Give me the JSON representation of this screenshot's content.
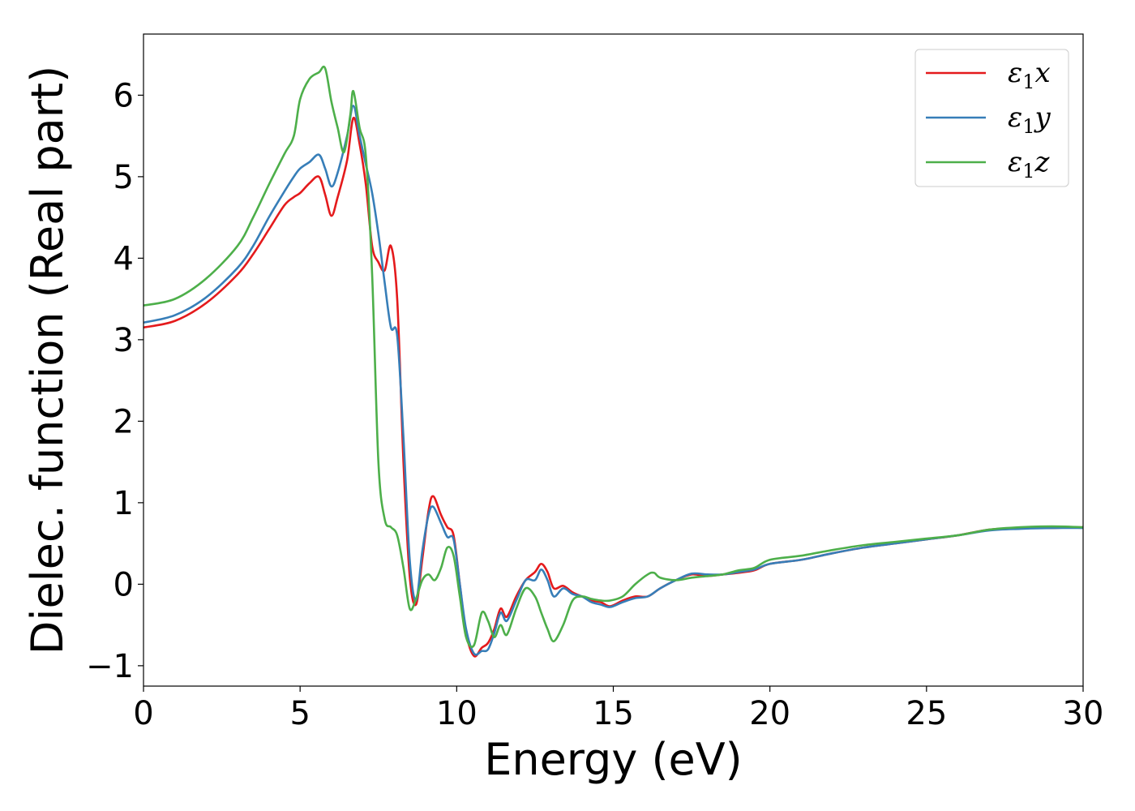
{
  "chart_data": {
    "type": "line",
    "xlabel": "Energy (eV)",
    "ylabel": "Dielec. function (Real part)",
    "xlim": [
      0,
      30
    ],
    "ylim": [
      -1.25,
      6.75
    ],
    "xticks": [
      0,
      5,
      10,
      15,
      20,
      25,
      30
    ],
    "yticks": [
      -1,
      0,
      1,
      2,
      3,
      4,
      5,
      6
    ],
    "xtick_labels": [
      "0",
      "5",
      "10",
      "15",
      "20",
      "25",
      "30"
    ],
    "ytick_labels": [
      "−1",
      "0",
      "1",
      "2",
      "3",
      "4",
      "5",
      "6"
    ],
    "grid": false,
    "legend_position": "top-right",
    "series": [
      {
        "name": "ε1x",
        "name_base": "ε",
        "name_sub": "1",
        "name_var": "x",
        "color": "#e41a1c",
        "x": [
          0,
          1,
          2,
          3,
          3.5,
          4,
          4.5,
          4.8,
          5.0,
          5.3,
          5.6,
          5.8,
          6.0,
          6.2,
          6.5,
          6.7,
          6.9,
          7.1,
          7.3,
          7.5,
          7.7,
          7.9,
          8.1,
          8.3,
          8.5,
          8.7,
          8.9,
          9.1,
          9.25,
          9.5,
          9.7,
          9.9,
          10.1,
          10.3,
          10.55,
          10.8,
          11.0,
          11.2,
          11.4,
          11.6,
          11.9,
          12.2,
          12.5,
          12.7,
          12.9,
          13.1,
          13.4,
          13.7,
          14.0,
          14.3,
          14.6,
          14.9,
          15.3,
          15.7,
          16.1,
          16.5,
          17.0,
          17.5,
          18.0,
          18.5,
          19.0,
          19.5,
          20.0,
          21.0,
          22.0,
          23.0,
          24.0,
          25.0,
          26.0,
          27.0,
          28.0,
          29.0,
          30.0
        ],
        "values": [
          3.15,
          3.23,
          3.45,
          3.8,
          4.05,
          4.35,
          4.65,
          4.75,
          4.8,
          4.92,
          5.0,
          4.78,
          4.52,
          4.75,
          5.2,
          5.72,
          5.4,
          4.9,
          4.15,
          3.95,
          3.85,
          4.15,
          3.5,
          1.5,
          0.1,
          -0.25,
          0.3,
          0.9,
          1.08,
          0.85,
          0.7,
          0.6,
          0.0,
          -0.6,
          -0.88,
          -0.78,
          -0.72,
          -0.55,
          -0.3,
          -0.4,
          -0.15,
          0.05,
          0.15,
          0.25,
          0.15,
          -0.05,
          -0.02,
          -0.1,
          -0.15,
          -0.2,
          -0.22,
          -0.27,
          -0.2,
          -0.15,
          -0.15,
          -0.05,
          0.05,
          0.12,
          0.1,
          0.12,
          0.14,
          0.17,
          0.25,
          0.3,
          0.38,
          0.45,
          0.5,
          0.55,
          0.6,
          0.67,
          0.69,
          0.69,
          0.7
        ]
      },
      {
        "name": "ε1y",
        "name_base": "ε",
        "name_sub": "1",
        "name_var": "y",
        "color": "#377eb8",
        "x": [
          0,
          1,
          2,
          3,
          3.5,
          4,
          4.5,
          4.8,
          5.0,
          5.3,
          5.6,
          5.8,
          6.0,
          6.2,
          6.5,
          6.7,
          6.9,
          7.1,
          7.3,
          7.5,
          7.7,
          7.9,
          8.1,
          8.3,
          8.5,
          8.7,
          8.9,
          9.1,
          9.25,
          9.5,
          9.7,
          9.9,
          10.1,
          10.3,
          10.55,
          10.8,
          11.0,
          11.2,
          11.4,
          11.6,
          11.9,
          12.2,
          12.5,
          12.7,
          12.9,
          13.1,
          13.4,
          13.7,
          14.0,
          14.3,
          14.6,
          14.9,
          15.3,
          15.7,
          16.1,
          16.5,
          17.0,
          17.5,
          18.0,
          18.5,
          19.0,
          19.5,
          20.0,
          21.0,
          22.0,
          23.0,
          24.0,
          25.0,
          26.0,
          27.0,
          28.0,
          29.0,
          30.0
        ],
        "values": [
          3.21,
          3.3,
          3.52,
          3.88,
          4.15,
          4.5,
          4.82,
          5.0,
          5.1,
          5.18,
          5.27,
          5.1,
          4.88,
          5.05,
          5.5,
          5.87,
          5.5,
          5.15,
          4.8,
          4.3,
          3.7,
          3.15,
          3.05,
          1.8,
          0.3,
          -0.2,
          0.4,
          0.85,
          0.95,
          0.75,
          0.58,
          0.55,
          0.0,
          -0.55,
          -0.85,
          -0.82,
          -0.8,
          -0.6,
          -0.35,
          -0.45,
          -0.2,
          0.05,
          0.05,
          0.18,
          0.05,
          -0.15,
          -0.05,
          -0.12,
          -0.15,
          -0.22,
          -0.25,
          -0.28,
          -0.22,
          -0.17,
          -0.15,
          -0.05,
          0.05,
          0.13,
          0.12,
          0.12,
          0.15,
          0.18,
          0.25,
          0.3,
          0.38,
          0.45,
          0.5,
          0.55,
          0.6,
          0.66,
          0.68,
          0.69,
          0.69
        ]
      },
      {
        "name": "ε1z",
        "name_base": "ε",
        "name_sub": "1",
        "name_var": "z",
        "color": "#4daf4a",
        "x": [
          0,
          1,
          2,
          3,
          3.5,
          4,
          4.5,
          4.8,
          5.0,
          5.3,
          5.6,
          5.8,
          6.0,
          6.2,
          6.4,
          6.6,
          6.7,
          6.9,
          7.1,
          7.3,
          7.5,
          7.7,
          7.9,
          8.1,
          8.3,
          8.5,
          8.7,
          8.9,
          9.1,
          9.3,
          9.5,
          9.7,
          9.9,
          10.1,
          10.3,
          10.55,
          10.8,
          11.0,
          11.2,
          11.4,
          11.6,
          11.9,
          12.2,
          12.5,
          12.7,
          12.9,
          13.1,
          13.4,
          13.7,
          14.0,
          14.3,
          14.6,
          14.9,
          15.3,
          15.7,
          16.1,
          16.3,
          16.5,
          17.0,
          17.5,
          18.0,
          18.5,
          19.0,
          19.5,
          20.0,
          21.0,
          22.0,
          23.0,
          24.0,
          25.0,
          26.0,
          27.0,
          28.0,
          29.0,
          30.0
        ],
        "values": [
          3.42,
          3.5,
          3.75,
          4.15,
          4.5,
          4.9,
          5.28,
          5.5,
          5.95,
          6.2,
          6.28,
          6.33,
          5.92,
          5.6,
          5.3,
          5.75,
          6.05,
          5.6,
          5.25,
          3.8,
          1.5,
          0.8,
          0.7,
          0.6,
          0.2,
          -0.3,
          -0.18,
          0.05,
          0.12,
          0.05,
          0.2,
          0.45,
          0.35,
          -0.15,
          -0.65,
          -0.75,
          -0.35,
          -0.45,
          -0.65,
          -0.5,
          -0.62,
          -0.3,
          -0.05,
          -0.15,
          -0.35,
          -0.55,
          -0.7,
          -0.5,
          -0.2,
          -0.15,
          -0.18,
          -0.2,
          -0.2,
          -0.15,
          0.0,
          0.12,
          0.14,
          0.08,
          0.05,
          0.08,
          0.1,
          0.12,
          0.17,
          0.2,
          0.3,
          0.35,
          0.42,
          0.48,
          0.52,
          0.56,
          0.6,
          0.67,
          0.7,
          0.71,
          0.7
        ]
      }
    ]
  }
}
